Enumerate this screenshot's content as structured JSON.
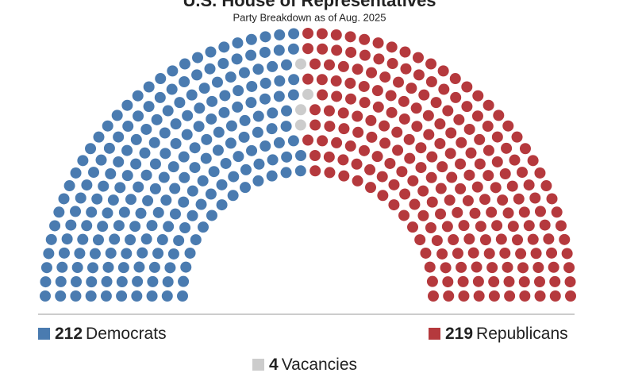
{
  "chart_data": {
    "type": "parliament",
    "title": "U.S. House of Representatives",
    "subtitle": "Party Breakdown as of Aug. 2025",
    "series": [
      {
        "name": "Democrats",
        "value": 212,
        "color": "#4a7bb0"
      },
      {
        "name": "Vacancies",
        "value": 4,
        "color": "#cccccc"
      },
      {
        "name": "Republicans",
        "value": 219,
        "color": "#b5393d"
      }
    ]
  }
}
